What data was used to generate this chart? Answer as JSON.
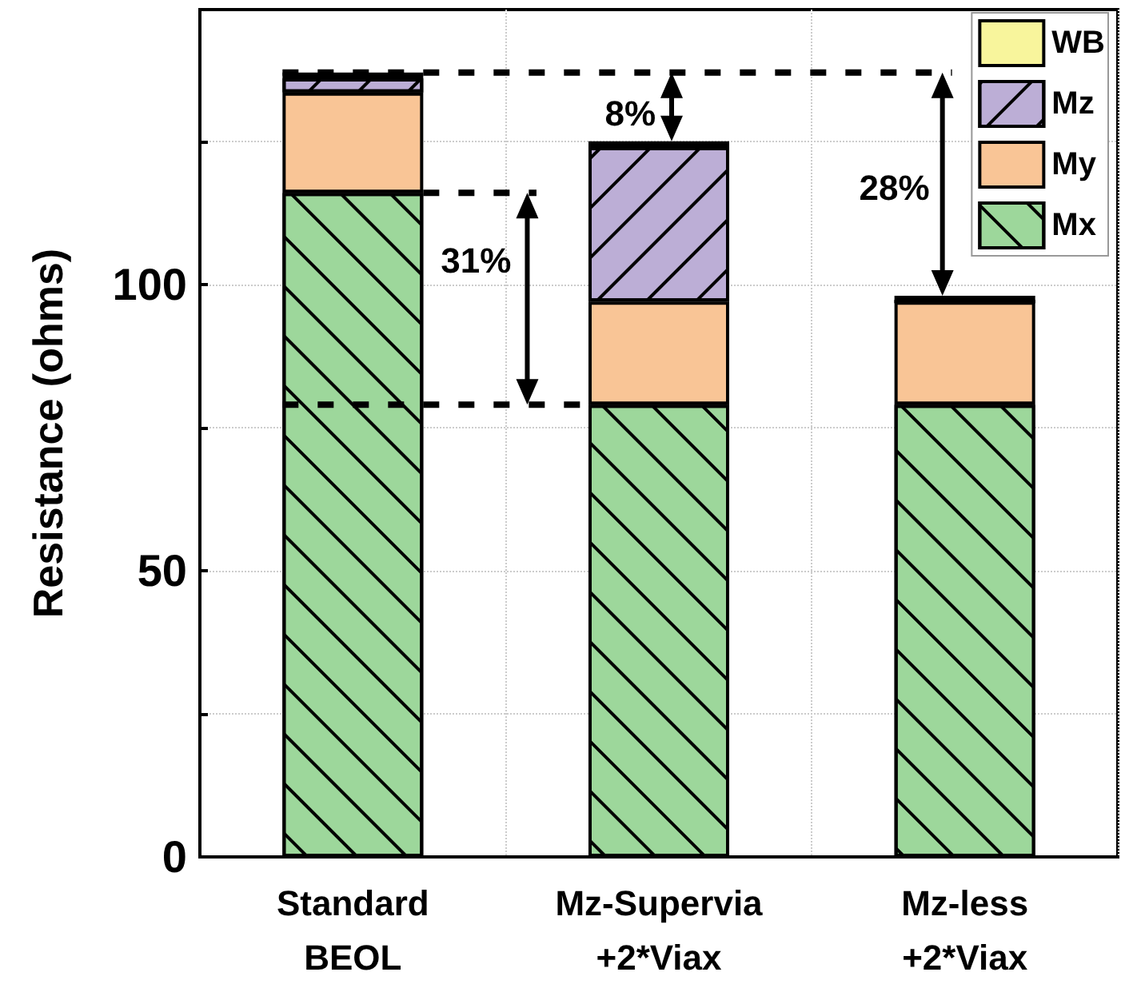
{
  "chart_data": {
    "type": "bar",
    "stacked": true,
    "ylabel": "Resistance (ohms)",
    "categories": [
      "Standard\nBEOL",
      "Mz-Supervia\n+2*Viax",
      "Mz-less\n+2*Viax"
    ],
    "series": [
      {
        "name": "Mx",
        "color": "#9dd79b",
        "values": [
          116,
          79,
          79
        ]
      },
      {
        "name": "My",
        "color": "#f9c596",
        "values": [
          17.5,
          18,
          18
        ]
      },
      {
        "name": "Mz",
        "color": "#bcaed6",
        "values": [
          2.5,
          27,
          0
        ]
      },
      {
        "name": "WB",
        "color": "#f8f59c",
        "values": [
          1,
          1,
          1
        ]
      }
    ],
    "ylim": [
      0,
      148
    ],
    "yticks": [
      0,
      {
        "value": 25,
        "label": null
      },
      50,
      {
        "value": 75,
        "label": null
      },
      100,
      {
        "value": 125,
        "label": null
      }
    ],
    "grid": true,
    "legend": "top right",
    "annotations": [
      "8%",
      "31%",
      "28%"
    ]
  }
}
